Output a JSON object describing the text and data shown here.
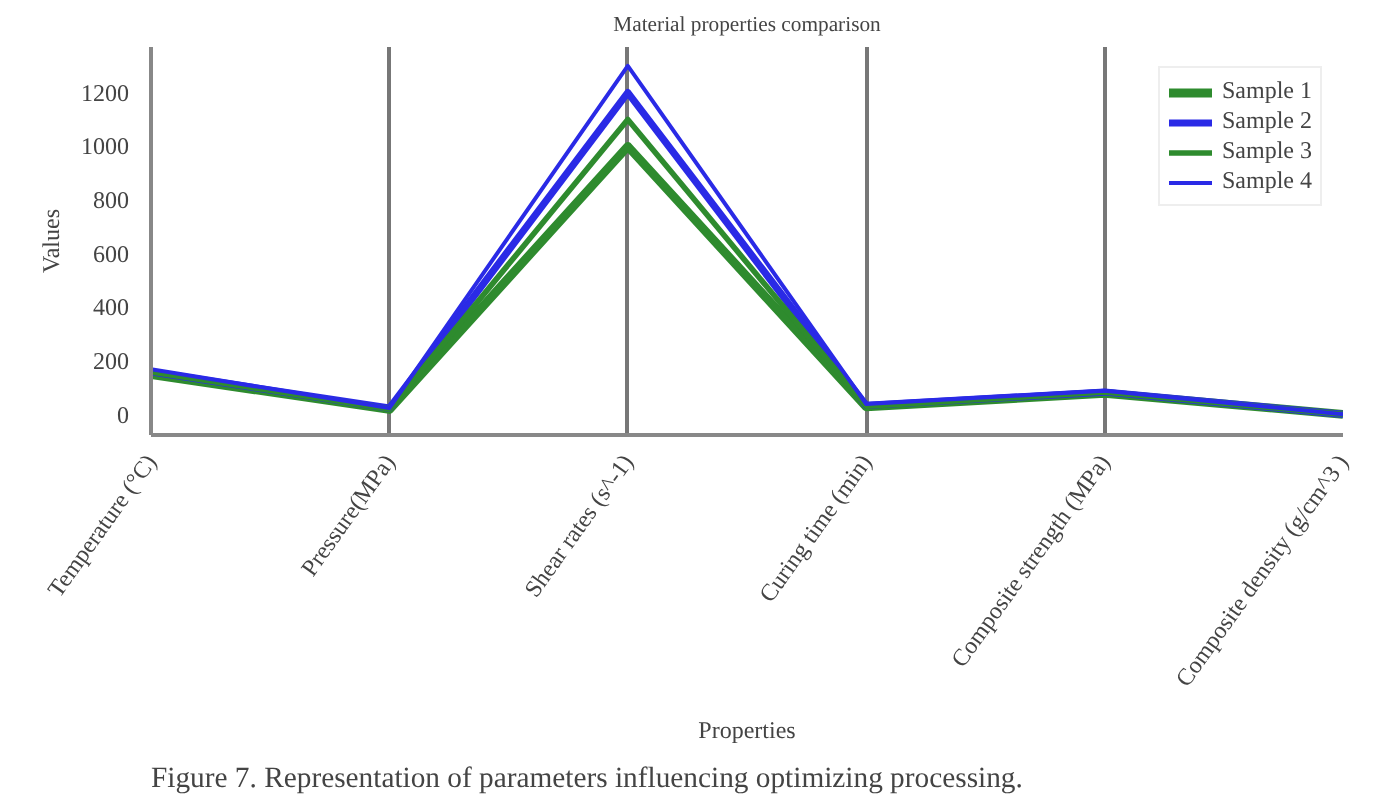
{
  "chart_data": {
    "type": "line",
    "title": "Material properties comparison",
    "xlabel": "Properties",
    "ylabel": "Values",
    "categories": [
      "Temperature (°C)",
      "Pressure(MPa)",
      "Shear rates (s^-1)",
      "Curing time (min)",
      "Composite strength (MPa)",
      "Composite density (g/cm^3 )"
    ],
    "series": [
      {
        "name": "Sample 1",
        "color": "#2e8b2e",
        "values": [
          150,
          20,
          1000,
          30,
          80,
          2
        ]
      },
      {
        "name": "Sample 2",
        "color": "#2a2ae6",
        "values": [
          160,
          25,
          1200,
          35,
          85,
          2
        ]
      },
      {
        "name": "Sample 3",
        "color": "#2e8b2e",
        "values": [
          160,
          22,
          1100,
          32,
          85,
          2
        ]
      },
      {
        "name": "Sample 4",
        "color": "#2a2ae6",
        "values": [
          170,
          25,
          1300,
          40,
          90,
          2
        ]
      }
    ],
    "ylim": [
      -75,
      1370
    ],
    "yticks": [
      0,
      200,
      400,
      600,
      800,
      1000,
      1200
    ],
    "grid": "x",
    "legend": "top right",
    "annotations": [
      "Figure 7. Representation of parameters influencing optimizing processing."
    ]
  }
}
